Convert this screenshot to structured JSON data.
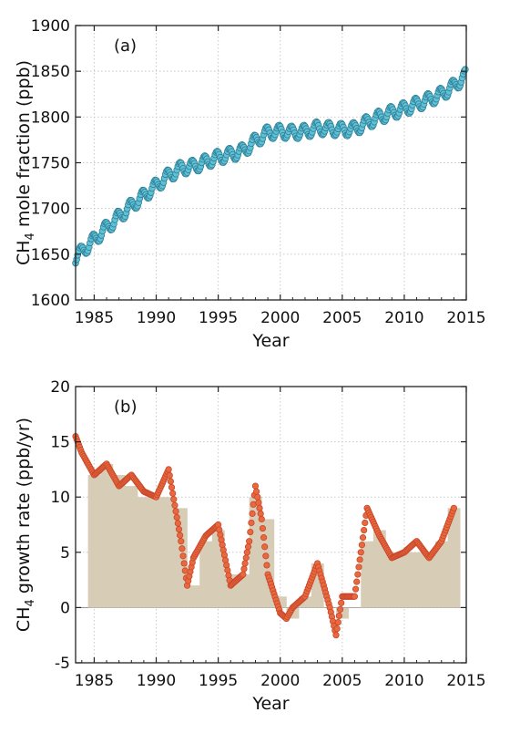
{
  "chart_data": [
    {
      "type": "line",
      "panel_label": "(a)",
      "xlabel": "Year",
      "ylabel": "CH4 mole fraction (ppb)",
      "ylabel_main": "CH",
      "ylabel_sub": "4",
      "ylabel_rest": " mole fraction (ppb)",
      "xlim": [
        1983.5,
        2015
      ],
      "ylim": [
        1600,
        1900
      ],
      "xticks": [
        1985,
        1990,
        1995,
        2000,
        2005,
        2010,
        2015
      ],
      "yticks": [
        1600,
        1650,
        1700,
        1750,
        1800,
        1850,
        1900
      ],
      "grid": true,
      "series": [
        {
          "marker_color": "#5fc0d6",
          "line_color": "#d9534f",
          "trend_x": [
            1983.5,
            1984,
            1985,
            1986,
            1987,
            1988,
            1989,
            1990,
            1991,
            1992,
            1993,
            1994,
            1995,
            1996,
            1997,
            1998,
            1999,
            2000,
            2001,
            2002,
            2003,
            2004,
            2005,
            2006,
            2007,
            2008,
            2009,
            2010,
            2011,
            2012,
            2013,
            2014,
            2015
          ],
          "trend_y": [
            1646,
            1653,
            1666,
            1679,
            1691,
            1703,
            1714,
            1725,
            1736,
            1744,
            1746,
            1751,
            1756,
            1759,
            1763,
            1774,
            1783,
            1784,
            1783,
            1784,
            1788,
            1787,
            1786,
            1787,
            1794,
            1800,
            1805,
            1809,
            1814,
            1819,
            1825,
            1834,
            1846
          ],
          "seasonal_amplitude": 7
        }
      ]
    },
    {
      "type": "bar",
      "panel_label": "(b)",
      "xlabel": "Year",
      "ylabel": "CH4 growth rate (ppb/yr)",
      "ylabel_main": "CH",
      "ylabel_sub": "4",
      "ylabel_rest": " growth rate (ppb/yr)",
      "xlim": [
        1983.5,
        2015
      ],
      "ylim": [
        -5,
        20
      ],
      "xticks": [
        1985,
        1990,
        1995,
        2000,
        2005,
        2010,
        2015
      ],
      "yticks": [
        -5,
        0,
        5,
        10,
        15,
        20
      ],
      "grid": true,
      "bar_color": "#d7cdb7",
      "categories": [
        1985,
        1986,
        1987,
        1988,
        1989,
        1990,
        1991,
        1992,
        1993,
        1994,
        1995,
        1996,
        1997,
        1998,
        1999,
        2000,
        2001,
        2002,
        2003,
        2004,
        2005,
        2006,
        2007,
        2008,
        2009,
        2010,
        2011,
        2012,
        2013,
        2014
      ],
      "values": [
        12,
        13,
        12,
        11,
        10,
        10,
        10,
        9,
        2,
        6,
        7,
        3,
        3,
        10,
        8,
        1,
        -1,
        1,
        4,
        0,
        -1,
        0,
        6,
        7,
        5,
        5,
        5,
        5,
        6,
        9
      ],
      "line_series": {
        "color": "#e8693f",
        "x": [
          1983.5,
          1984,
          1985,
          1986,
          1987,
          1988,
          1989,
          1990,
          1991,
          1992,
          1992.5,
          1993,
          1994,
          1995,
          1996,
          1997,
          1997.5,
          1998,
          1998.5,
          1999,
          2000,
          2000.5,
          2001,
          2002,
          2003,
          2004,
          2004.5,
          2005,
          2006,
          2007,
          2008,
          2009,
          2010,
          2011,
          2012,
          2013,
          2014
        ],
        "y": [
          15.5,
          14,
          12,
          13,
          11,
          12,
          10.5,
          10,
          12.5,
          6,
          2,
          4.5,
          6.5,
          7.5,
          2,
          3,
          6,
          11,
          8,
          3,
          -0.5,
          -1,
          0,
          1,
          4,
          0,
          -2.5,
          1,
          1,
          9,
          6.5,
          4.5,
          5,
          6,
          4.5,
          6,
          9
        ]
      }
    }
  ]
}
